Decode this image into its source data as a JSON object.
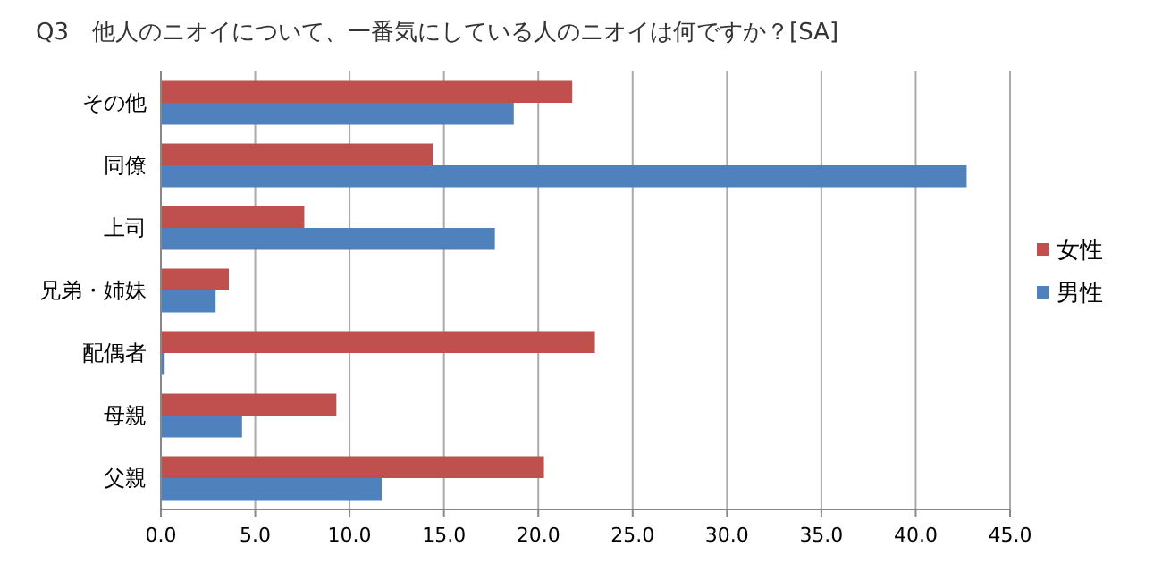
{
  "chart_data": {
    "type": "bar",
    "orientation": "horizontal",
    "title": "Q3　他人のニオイについて、一番気にしている人のニオイは何ですか？[SA]",
    "categories": [
      "その他",
      "同僚",
      "上司",
      "兄弟・姉妹",
      "配偶者",
      "母親",
      "父親"
    ],
    "series": [
      {
        "name": "女性",
        "color": "#c0504d",
        "values": [
          21.8,
          14.4,
          7.6,
          3.6,
          23.0,
          9.3,
          20.3
        ]
      },
      {
        "name": "男性",
        "color": "#4f81bd",
        "values": [
          18.7,
          42.7,
          17.7,
          2.9,
          0.2,
          4.3,
          11.7
        ]
      }
    ],
    "xlim": [
      0,
      45
    ],
    "xticks": [
      {
        "value": 0,
        "label": "0.0"
      },
      {
        "value": 5,
        "label": "5.0"
      },
      {
        "value": 10,
        "label": "10.0"
      },
      {
        "value": 15,
        "label": "15.0"
      },
      {
        "value": 20,
        "label": "20.0"
      },
      {
        "value": 25,
        "label": "25.0"
      },
      {
        "value": 30,
        "label": "30.0"
      },
      {
        "value": 35,
        "label": "35.0"
      },
      {
        "value": 40,
        "label": "40.0"
      },
      {
        "value": 45,
        "label": "45.0"
      }
    ],
    "grid": "x",
    "legend": "right"
  }
}
